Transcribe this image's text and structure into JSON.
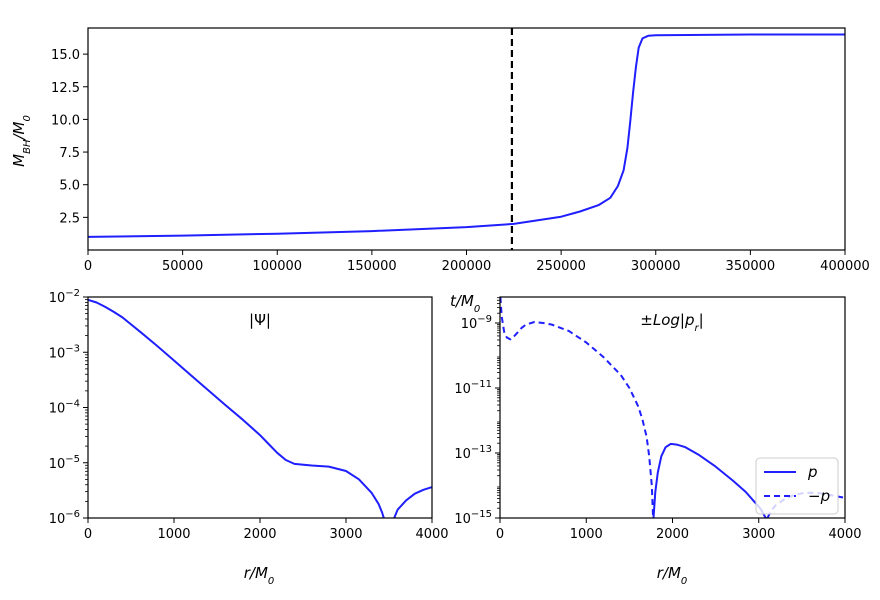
{
  "chart_data": [
    {
      "type": "line",
      "id": "mass",
      "ylabel": "M_BH/M_0",
      "xlim": [
        0,
        400000
      ],
      "ylim": [
        0.0,
        17.0
      ],
      "xticks": [
        0,
        50000,
        100000,
        150000,
        200000,
        250000,
        300000,
        350000,
        400000
      ],
      "xtick_labels": [
        "0",
        "50000",
        "100000",
        "150000",
        "200000",
        "250000",
        "300000",
        "350000",
        "400000"
      ],
      "yticks": [
        2.5,
        5.0,
        7.5,
        10.0,
        12.5,
        15.0
      ],
      "ytick_labels": [
        "2.5",
        "5.0",
        "7.5",
        "10.0",
        "12.5",
        "15.0"
      ],
      "vline": {
        "x": 224000,
        "style": "dashed",
        "color": "#000000"
      },
      "series": [
        {
          "color": "#1f1fff",
          "x": [
            0,
            50000,
            100000,
            150000,
            200000,
            225000,
            250000,
            260000,
            270000,
            276000,
            280000,
            283000,
            285000,
            286500,
            288000,
            289500,
            291000,
            293000,
            296000,
            300000,
            350000,
            400000
          ],
          "y": [
            1.0,
            1.1,
            1.25,
            1.45,
            1.75,
            2.0,
            2.55,
            2.95,
            3.45,
            4.0,
            4.9,
            6.1,
            7.8,
            9.8,
            12.0,
            14.0,
            15.5,
            16.2,
            16.4,
            16.45,
            16.5,
            16.5
          ]
        }
      ]
    },
    {
      "type": "line",
      "id": "psi",
      "title": "|Ψ|",
      "xlabel": "r/M_0",
      "xlim": [
        0,
        4000
      ],
      "ylim_log10": [
        -6,
        -2
      ],
      "xticks": [
        0,
        1000,
        2000,
        3000,
        4000
      ],
      "xtick_labels": [
        "0",
        "1000",
        "2000",
        "3000",
        "4000"
      ],
      "yticks_log10": [
        -6,
        -5,
        -4,
        -3,
        -2
      ],
      "ytick_labels": [
        "10^-6",
        "10^-5",
        "10^-4",
        "10^-3",
        "10^-2"
      ],
      "series": [
        {
          "color": "#1f1fff",
          "x": [
            0,
            100,
            200,
            300,
            400,
            600,
            800,
            1000,
            1200,
            1400,
            1600,
            1800,
            2000,
            2100,
            2200,
            2300,
            2400,
            2600,
            2800,
            3000,
            3150,
            3300,
            3380,
            3420,
            3440
          ],
          "log10_y": [
            -2.05,
            -2.1,
            -2.18,
            -2.27,
            -2.37,
            -2.62,
            -2.88,
            -3.15,
            -3.42,
            -3.69,
            -3.96,
            -4.22,
            -4.5,
            -4.66,
            -4.82,
            -4.95,
            -5.02,
            -5.05,
            -5.07,
            -5.15,
            -5.3,
            -5.55,
            -5.75,
            -5.9,
            -6.0
          ]
        },
        {
          "color": "#1f1fff",
          "x": [
            3560,
            3600,
            3700,
            3800,
            3900,
            4000
          ],
          "log10_y": [
            -6.0,
            -5.85,
            -5.68,
            -5.56,
            -5.49,
            -5.44
          ]
        }
      ]
    },
    {
      "type": "line",
      "id": "pr",
      "title": "±Log|p_r|",
      "ylabel": "t/M_0",
      "xlabel": "r/M_0",
      "xlim": [
        0,
        4000
      ],
      "ylim_log10": [
        -15,
        -8.2
      ],
      "xticks": [
        0,
        1000,
        2000,
        3000,
        4000
      ],
      "xtick_labels": [
        "0",
        "1000",
        "2000",
        "3000",
        "4000"
      ],
      "yticks_log10": [
        -15,
        -13,
        -11,
        -9
      ],
      "ytick_labels": [
        "10^-15",
        "10^-13",
        "10^-11",
        "10^-9"
      ],
      "legend": {
        "position": "lower-right",
        "entries": [
          {
            "label": "p",
            "style": "solid"
          },
          {
            "label": "−p",
            "style": "dashed"
          }
        ]
      },
      "series": [
        {
          "label": "−p",
          "style": "dashed",
          "color": "#1f1fff",
          "x": [
            5,
            20,
            50,
            80,
            120,
            160,
            200,
            250,
            300,
            400,
            500,
            600,
            800,
            1000,
            1200,
            1400,
            1500,
            1600,
            1650,
            1700,
            1730,
            1760,
            1775
          ],
          "log10_y": [
            -8.2,
            -8.8,
            -9.3,
            -9.45,
            -9.5,
            -9.42,
            -9.3,
            -9.15,
            -9.05,
            -8.97,
            -9.0,
            -9.05,
            -9.25,
            -9.6,
            -10.05,
            -10.6,
            -11.0,
            -11.55,
            -11.95,
            -12.5,
            -13.1,
            -14.0,
            -15.0
          ]
        },
        {
          "label": "p",
          "style": "solid",
          "color": "#1f1fff",
          "x": [
            1780,
            1800,
            1830,
            1870,
            1920,
            1980,
            2050,
            2150,
            2300,
            2500,
            2700,
            2850,
            2950,
            3000,
            3030,
            3060,
            3080
          ],
          "log10_y": [
            -15.0,
            -14.2,
            -13.6,
            -13.1,
            -12.82,
            -12.72,
            -12.74,
            -12.82,
            -13.05,
            -13.42,
            -13.85,
            -14.2,
            -14.5,
            -14.65,
            -14.75,
            -14.9,
            -15.0
          ]
        },
        {
          "label": "−p",
          "style": "dashed",
          "color": "#1f1fff",
          "x": [
            3100,
            3150,
            3200,
            3300,
            3400,
            3500,
            3600,
            3700,
            3800,
            3900,
            4000
          ],
          "log10_y": [
            -15.0,
            -14.75,
            -14.6,
            -14.42,
            -14.3,
            -14.24,
            -14.22,
            -14.24,
            -14.28,
            -14.33,
            -14.38
          ]
        }
      ]
    }
  ]
}
